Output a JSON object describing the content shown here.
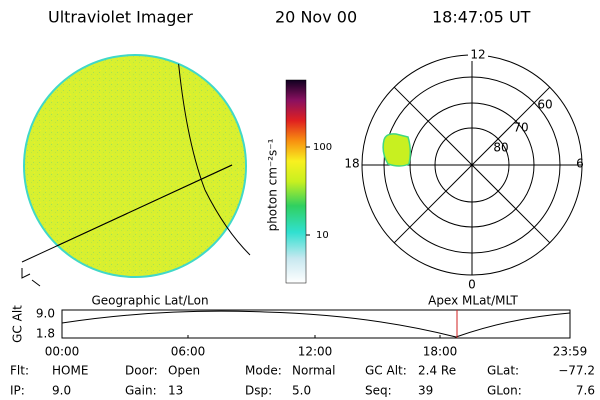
{
  "header": {
    "title": "Ultraviolet Imager",
    "date": "20 Nov 00",
    "time": "18:47:05 UT"
  },
  "colorbar": {
    "label": "photon cm⁻²s⁻¹",
    "ticks": [
      "100",
      "10"
    ]
  },
  "polar": {
    "mlt_labels": [
      "12",
      "18",
      "6",
      "0"
    ],
    "lat_labels": [
      "60",
      "70",
      "80"
    ]
  },
  "timeline": {
    "left_label": "Geographic Lat/Lon",
    "right_label": "Apex MLat/MLT",
    "axis_label": "GC Alt",
    "yticks": [
      "9.0",
      "1.8"
    ],
    "xticks": [
      "00:00",
      "06:00",
      "12:00",
      "18:00",
      "23:59"
    ]
  },
  "footer": [
    [
      {
        "label": "Flt:",
        "value": "HOME"
      },
      {
        "label": "Door:",
        "value": "Open"
      },
      {
        "label": "Mode:",
        "value": "Normal"
      },
      {
        "label": "GC Alt:",
        "value": "2.4 Re"
      },
      {
        "label": "GLat:",
        "value": "−77.2"
      }
    ],
    [
      {
        "label": "IP:",
        "value": "9.0"
      },
      {
        "label": "Gain:",
        "value": "13"
      },
      {
        "label": "Dsp:",
        "value": "5.0"
      },
      {
        "label": "Seq:",
        "value": "39"
      },
      {
        "label": "GLon:",
        "value": "7.6"
      }
    ]
  ]
}
